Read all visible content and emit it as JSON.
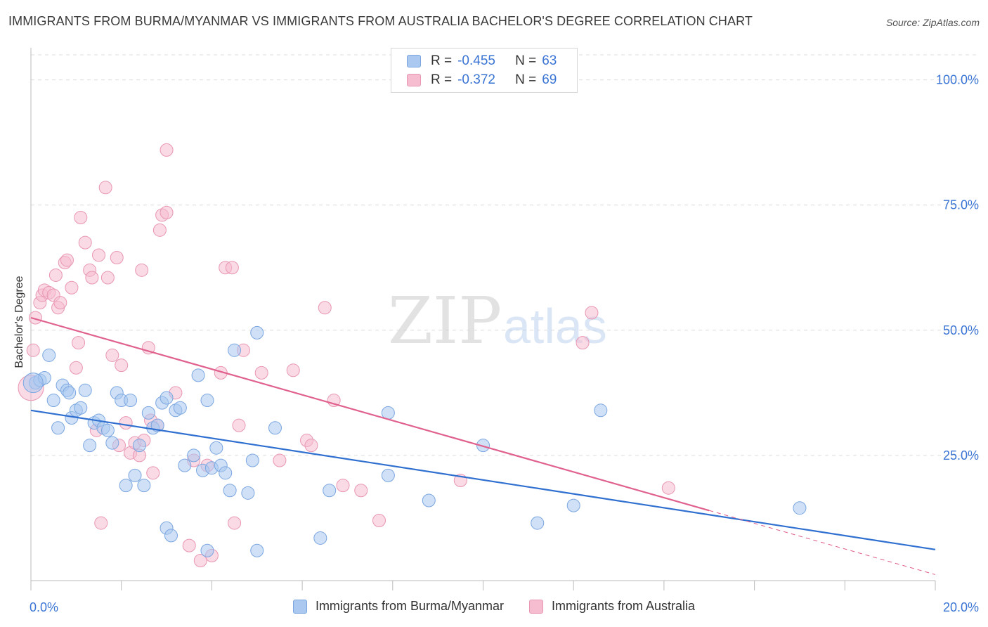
{
  "header": {
    "title": "IMMIGRANTS FROM BURMA/MYANMAR VS IMMIGRANTS FROM AUSTRALIA BACHELOR'S DEGREE CORRELATION CHART",
    "source": "Source: ZipAtlas.com"
  },
  "watermark": {
    "zip": "ZIP",
    "atlas": "atlas"
  },
  "legend": {
    "rows": [
      {
        "r_label": "R =",
        "r_value": "-0.455",
        "n_label": "N =",
        "n_value": "63"
      },
      {
        "r_label": "R =",
        "r_value": "-0.372",
        "n_label": "N =",
        "n_value": "69"
      }
    ]
  },
  "bottom_legend": {
    "burma": "Immigrants from Burma/Myanmar",
    "australia": "Immigrants from Australia"
  },
  "colors": {
    "burma_fill": "#aac8f0",
    "burma_stroke": "#7aa6e0",
    "burma_line": "#2f6fd0",
    "australia_fill": "#f6bcd0",
    "australia_stroke": "#e896b4",
    "australia_line": "#e0608e",
    "tick_label": "#3a74d4",
    "grid": "#dcdcdc"
  },
  "chart_data": {
    "type": "scatter",
    "title": "IMMIGRANTS FROM BURMA/MYANMAR VS IMMIGRANTS FROM AUSTRALIA BACHELOR'S DEGREE CORRELATION CHART",
    "xlabel": "",
    "ylabel": "Bachelor's Degree",
    "xlim": [
      0,
      20
    ],
    "ylim": [
      0,
      105
    ],
    "x_tick_labels": [
      "0.0%",
      "20.0%"
    ],
    "y_tick_labels": [
      "100.0%",
      "75.0%",
      "50.0%",
      "25.0%"
    ],
    "y_ticks": [
      100,
      75,
      50,
      25
    ],
    "grid": true,
    "legend_position": "top-center",
    "series": [
      {
        "name": "Immigrants from Burma/Myanmar",
        "r": -0.455,
        "n": 63,
        "trend": {
          "x": [
            0,
            20
          ],
          "y": [
            34.0,
            6.2
          ]
        },
        "points": [
          [
            0.1,
            39.5
          ],
          [
            0.2,
            40
          ],
          [
            0.3,
            40.5
          ],
          [
            0.4,
            45
          ],
          [
            0.5,
            36
          ],
          [
            0.6,
            30.5
          ],
          [
            0.7,
            39
          ],
          [
            0.8,
            38
          ],
          [
            0.85,
            37.5
          ],
          [
            0.9,
            32.5
          ],
          [
            1.0,
            34
          ],
          [
            1.1,
            34.5
          ],
          [
            1.2,
            38
          ],
          [
            1.3,
            27
          ],
          [
            1.4,
            31.5
          ],
          [
            1.5,
            32
          ],
          [
            1.6,
            30.5
          ],
          [
            1.7,
            30
          ],
          [
            1.8,
            27.5
          ],
          [
            1.9,
            37.5
          ],
          [
            2.0,
            36
          ],
          [
            2.1,
            19
          ],
          [
            2.2,
            36
          ],
          [
            2.3,
            21
          ],
          [
            2.4,
            27
          ],
          [
            2.5,
            19
          ],
          [
            2.6,
            33.5
          ],
          [
            2.7,
            30.5
          ],
          [
            2.8,
            31
          ],
          [
            2.9,
            35.5
          ],
          [
            3.0,
            36.5
          ],
          [
            3.0,
            10.5
          ],
          [
            3.1,
            9
          ],
          [
            3.2,
            34
          ],
          [
            3.3,
            34.5
          ],
          [
            3.4,
            23
          ],
          [
            3.6,
            25
          ],
          [
            3.7,
            41
          ],
          [
            3.8,
            22
          ],
          [
            3.9,
            6
          ],
          [
            3.9,
            36
          ],
          [
            4.0,
            22.5
          ],
          [
            4.1,
            26.5
          ],
          [
            4.2,
            23
          ],
          [
            4.3,
            21.5
          ],
          [
            4.4,
            18
          ],
          [
            4.5,
            46
          ],
          [
            4.8,
            17.5
          ],
          [
            4.9,
            24
          ],
          [
            5.0,
            6
          ],
          [
            5.0,
            49.5
          ],
          [
            5.4,
            30.5
          ],
          [
            6.4,
            8.5
          ],
          [
            6.6,
            18
          ],
          [
            7.9,
            21
          ],
          [
            7.9,
            33.5
          ],
          [
            8.8,
            16
          ],
          [
            10.0,
            27
          ],
          [
            11.2,
            11.5
          ],
          [
            12.0,
            15
          ],
          [
            12.6,
            34
          ],
          [
            17.0,
            14.5
          ],
          [
            0.05,
            39.5
          ]
        ]
      },
      {
        "name": "Immigrants from Australia",
        "r": -0.372,
        "n": 69,
        "trend": {
          "x": [
            0,
            15
          ],
          "y": [
            52.5,
            14.0
          ]
        },
        "trend_dashed": {
          "x": [
            15,
            20
          ],
          "y": [
            14.0,
            1.2
          ]
        },
        "points": [
          [
            0.05,
            46
          ],
          [
            0.1,
            52.5
          ],
          [
            0.2,
            55.5
          ],
          [
            0.25,
            57
          ],
          [
            0.3,
            58
          ],
          [
            0.4,
            57.5
          ],
          [
            0.5,
            57
          ],
          [
            0.55,
            61
          ],
          [
            0.6,
            54.5
          ],
          [
            0.65,
            55.5
          ],
          [
            0.75,
            63.5
          ],
          [
            0.8,
            64
          ],
          [
            0.9,
            58.5
          ],
          [
            1.0,
            42.5
          ],
          [
            1.05,
            47.5
          ],
          [
            1.1,
            72.5
          ],
          [
            1.2,
            67.5
          ],
          [
            1.3,
            62
          ],
          [
            1.35,
            60.5
          ],
          [
            1.45,
            30
          ],
          [
            1.5,
            65
          ],
          [
            1.55,
            11.5
          ],
          [
            1.65,
            78.5
          ],
          [
            1.7,
            60.5
          ],
          [
            1.8,
            45
          ],
          [
            1.9,
            64.5
          ],
          [
            1.95,
            27
          ],
          [
            2.0,
            43
          ],
          [
            2.1,
            31.5
          ],
          [
            2.2,
            25.5
          ],
          [
            2.3,
            27.5
          ],
          [
            2.4,
            25
          ],
          [
            2.45,
            62
          ],
          [
            2.5,
            28
          ],
          [
            2.6,
            46.5
          ],
          [
            2.65,
            32
          ],
          [
            2.7,
            21.5
          ],
          [
            2.8,
            31
          ],
          [
            2.85,
            70
          ],
          [
            2.9,
            73
          ],
          [
            3.0,
            86
          ],
          [
            3.0,
            73.5
          ],
          [
            3.2,
            37.5
          ],
          [
            3.5,
            7
          ],
          [
            3.6,
            24
          ],
          [
            3.75,
            4
          ],
          [
            3.9,
            23
          ],
          [
            4.0,
            5
          ],
          [
            4.2,
            41.5
          ],
          [
            4.3,
            62.5
          ],
          [
            4.45,
            62.5
          ],
          [
            4.5,
            11.5
          ],
          [
            4.6,
            31
          ],
          [
            4.7,
            46
          ],
          [
            5.1,
            41.5
          ],
          [
            5.5,
            24
          ],
          [
            5.8,
            42
          ],
          [
            6.1,
            28
          ],
          [
            6.2,
            27
          ],
          [
            6.5,
            54.5
          ],
          [
            6.7,
            36
          ],
          [
            6.9,
            19
          ],
          [
            7.3,
            18
          ],
          [
            7.7,
            12
          ],
          [
            9.5,
            20
          ],
          [
            12.2,
            47.5
          ],
          [
            12.4,
            53.5
          ],
          [
            14.1,
            18.5
          ],
          [
            0.0,
            38.5
          ]
        ]
      }
    ]
  }
}
